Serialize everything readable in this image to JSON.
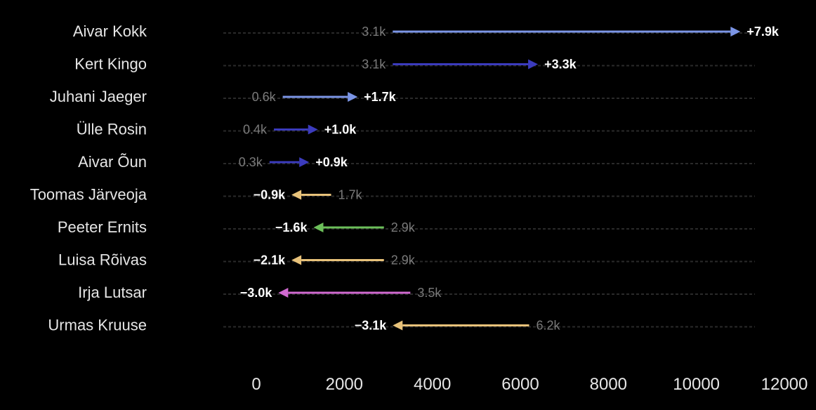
{
  "chart_data": {
    "type": "arrow",
    "xlim": [
      0,
      12000
    ],
    "x_ticks": [
      0,
      2000,
      4000,
      6000,
      8000,
      10000,
      12000
    ],
    "grid": false,
    "rows": [
      {
        "name": "Aivar Kokk",
        "start": 3100,
        "end": 11000,
        "start_label": "3.1k",
        "delta_label": "+7.9k",
        "color": "#7b95e6"
      },
      {
        "name": "Kert Kingo",
        "start": 3100,
        "end": 6400,
        "start_label": "3.1k",
        "delta_label": "+3.3k",
        "color": "#3b3bbd"
      },
      {
        "name": "Juhani Jaeger",
        "start": 600,
        "end": 2300,
        "start_label": "0.6k",
        "delta_label": "+1.7k",
        "color": "#7b95e6"
      },
      {
        "name": "Ülle Rosin",
        "start": 400,
        "end": 1400,
        "start_label": "0.4k",
        "delta_label": "+1.0k",
        "color": "#3b3bbd"
      },
      {
        "name": "Aivar Õun",
        "start": 300,
        "end": 1200,
        "start_label": "0.3k",
        "delta_label": "+0.9k",
        "color": "#3b3bbd"
      },
      {
        "name": "Toomas Järveoja",
        "start": 1700,
        "end": 800,
        "start_label": "1.7k",
        "delta_label": "−0.9k",
        "color": "#e8c27a"
      },
      {
        "name": "Peeter Ernits",
        "start": 2900,
        "end": 1300,
        "start_label": "2.9k",
        "delta_label": "−1.6k",
        "color": "#6cbf5a"
      },
      {
        "name": "Luisa Rõivas",
        "start": 2900,
        "end": 800,
        "start_label": "2.9k",
        "delta_label": "−2.1k",
        "color": "#e8c27a"
      },
      {
        "name": "Irja Lutsar",
        "start": 3500,
        "end": 500,
        "start_label": "3.5k",
        "delta_label": "−3.0k",
        "color": "#d16ad1"
      },
      {
        "name": "Urmas Kruuse",
        "start": 6200,
        "end": 3100,
        "start_label": "6.2k",
        "delta_label": "−3.1k",
        "color": "#e8c27a"
      }
    ]
  }
}
